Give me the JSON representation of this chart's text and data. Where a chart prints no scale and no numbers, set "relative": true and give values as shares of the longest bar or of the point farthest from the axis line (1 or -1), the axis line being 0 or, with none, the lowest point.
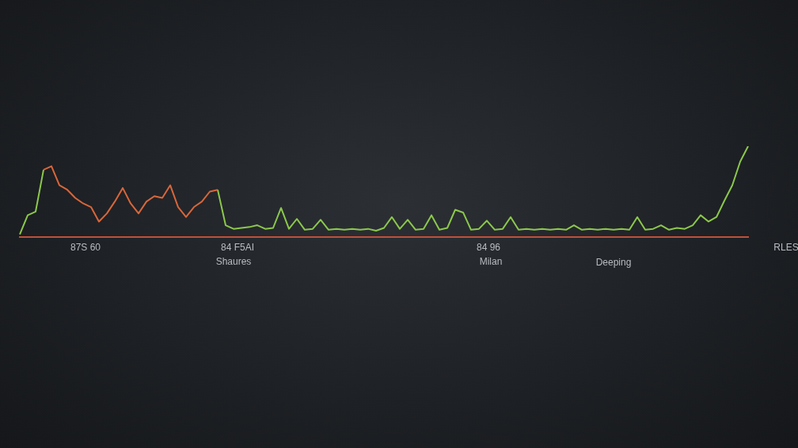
{
  "chart_data": {
    "type": "line",
    "relative": true,
    "legend": false,
    "grid": false,
    "categories": [
      null,
      null,
      null,
      null,
      null,
      null,
      null,
      null,
      null,
      null,
      null,
      null,
      null,
      null,
      null,
      null,
      null,
      null,
      null,
      null,
      null,
      null,
      null,
      null,
      null,
      null,
      null,
      null,
      null,
      null,
      null,
      null,
      null,
      null,
      null,
      null,
      null,
      null,
      null,
      null,
      null,
      null,
      null,
      null,
      null,
      null,
      null,
      null,
      null,
      null,
      null,
      null,
      null,
      null,
      null,
      null,
      null,
      null,
      null,
      null,
      null,
      null,
      null,
      null,
      null,
      null,
      null,
      null,
      null,
      null,
      null,
      null,
      null,
      null,
      null,
      null,
      null,
      null,
      null,
      null,
      null,
      null,
      null,
      null,
      null,
      null,
      null,
      null,
      null,
      null,
      null,
      null,
      null
    ],
    "series": [
      {
        "color": "#d9663a",
        "values": [
          null,
          null,
          null,
          0.74,
          0.78,
          0.57,
          0.52,
          0.43,
          0.37,
          0.33,
          0.17,
          0.26,
          0.39,
          0.54,
          0.37,
          0.26,
          0.39,
          0.45,
          0.43,
          0.57,
          0.33,
          0.22,
          0.33,
          0.39,
          0.5,
          0.52,
          null,
          null,
          null,
          null,
          null,
          null,
          null,
          null,
          null,
          null,
          null,
          null,
          null,
          null,
          null,
          null,
          null,
          null,
          null,
          null,
          null,
          null,
          null,
          null,
          null,
          null,
          null,
          null,
          null,
          null,
          null,
          null,
          null,
          null,
          null,
          null,
          null,
          null,
          null,
          null,
          null,
          null,
          null,
          null,
          null,
          null,
          null,
          null,
          null,
          null,
          null,
          null,
          null,
          null,
          null,
          null,
          null,
          null,
          null,
          null,
          null,
          null,
          null,
          null,
          null,
          null,
          null
        ]
      },
      {
        "color": "#8cc84b",
        "values": [
          0.03,
          0.24,
          0.28,
          0.74,
          null,
          null,
          null,
          null,
          null,
          null,
          null,
          null,
          null,
          null,
          null,
          null,
          null,
          null,
          null,
          null,
          null,
          null,
          null,
          null,
          null,
          0.52,
          0.13,
          0.09,
          0.1,
          0.11,
          0.13,
          0.09,
          0.1,
          0.32,
          0.09,
          0.2,
          0.08,
          0.09,
          0.19,
          0.08,
          0.09,
          0.08,
          0.09,
          0.08,
          0.09,
          0.07,
          0.1,
          0.22,
          0.09,
          0.19,
          0.08,
          0.09,
          0.24,
          0.08,
          0.1,
          0.3,
          0.27,
          0.08,
          0.09,
          0.18,
          0.08,
          0.09,
          0.22,
          0.08,
          0.09,
          0.08,
          0.09,
          0.08,
          0.09,
          0.08,
          0.13,
          0.08,
          0.09,
          0.08,
          0.09,
          0.08,
          0.09,
          0.08,
          0.22,
          0.08,
          0.09,
          0.13,
          0.08,
          0.1,
          0.09,
          0.13,
          0.24,
          0.17,
          0.22,
          0.4,
          0.57,
          0.83,
          1.0
        ]
      }
    ],
    "annotations": [
      "87S 60",
      "84 F5AI",
      "Shaures",
      "84 96",
      "Milan",
      "Deeping",
      "RLES"
    ]
  }
}
